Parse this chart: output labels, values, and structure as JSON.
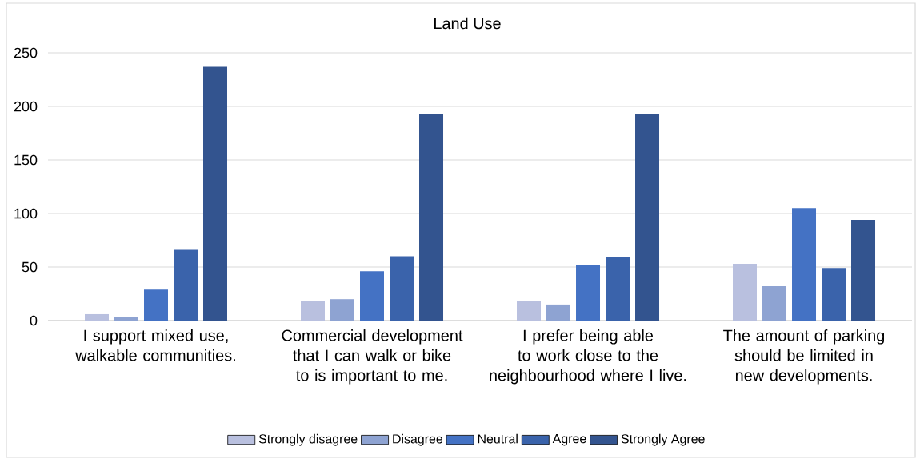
{
  "chart_data": {
    "type": "bar",
    "title": "Land Use",
    "categories": [
      "I support mixed use, walkable communities.",
      "Commercial development that I can walk or bike to is important to me.",
      "I prefer being able to work close to the neighbourhood where I live.",
      "The amount of parking should be limited in new developments."
    ],
    "series": [
      {
        "name": "Strongly disagree",
        "color": "#b9c0df",
        "values": [
          6,
          18,
          18,
          53
        ]
      },
      {
        "name": "Disagree",
        "color": "#8ea3d2",
        "values": [
          3,
          20,
          15,
          32
        ]
      },
      {
        "name": "Neutral",
        "color": "#4472c4",
        "values": [
          29,
          46,
          52,
          105
        ]
      },
      {
        "name": "Agree",
        "color": "#3a63ab",
        "values": [
          66,
          60,
          59,
          49
        ]
      },
      {
        "name": "Strongly Agree",
        "color": "#33548f",
        "values": [
          237,
          193,
          193,
          94
        ]
      }
    ],
    "ylim": [
      0,
      250
    ],
    "yticks": [
      0,
      50,
      100,
      150,
      200,
      250
    ],
    "grid": "y",
    "legend": "bottom"
  }
}
